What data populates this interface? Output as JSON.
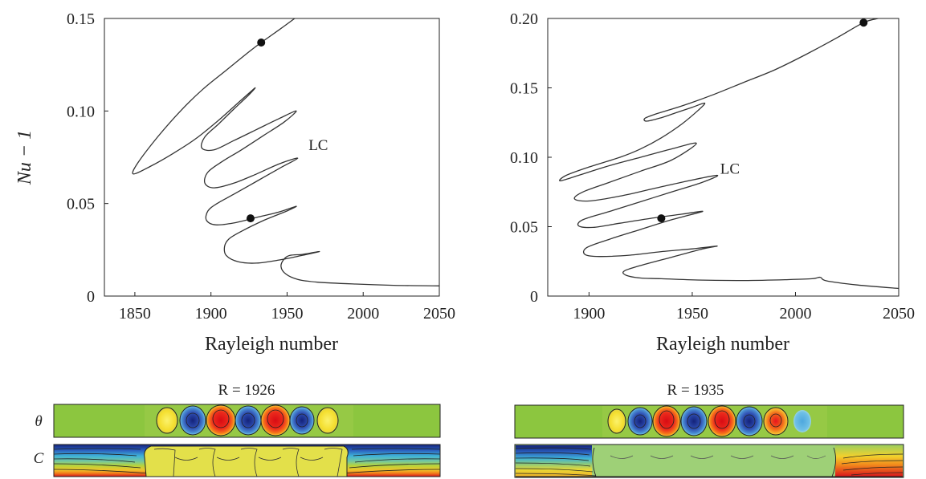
{
  "chart_data": [
    {
      "type": "line",
      "title": "",
      "xlabel": "Rayleigh number",
      "ylabel": "Nu − 1",
      "xlim": [
        1830,
        2050
      ],
      "ylim": [
        0,
        0.15
      ],
      "xticks": [
        1850,
        1900,
        1950,
        2000,
        2050
      ],
      "yticks": [
        0,
        0.05,
        0.1,
        0.15
      ],
      "xtick_labels": [
        "1850",
        "1900",
        "1950",
        "2000",
        "2050"
      ],
      "ytick_labels": [
        "0",
        "0.05",
        "0.10",
        "0.15"
      ],
      "annotations": [
        {
          "text": "LC",
          "x": 1962,
          "y": 0.078
        }
      ],
      "markers": [
        {
          "x": 1933,
          "y": 0.137
        },
        {
          "x": 1926,
          "y": 0.042
        }
      ],
      "series": [
        {
          "points": [
            [
              2050,
              0.0055
            ],
            [
              2020,
              0.0058
            ],
            [
              1995,
              0.0065
            ],
            [
              1970,
              0.0075
            ],
            [
              1957,
              0.009
            ],
            [
              1949,
              0.012
            ],
            [
              1946,
              0.016
            ],
            [
              1948,
              0.02
            ],
            [
              1952,
              0.022
            ],
            [
              1960,
              0.0225
            ],
            [
              1967,
              0.0235
            ],
            [
              1971,
              0.024
            ],
            [
              1960,
              0.022
            ],
            [
              1945,
              0.0195
            ],
            [
              1930,
              0.0178
            ],
            [
              1918,
              0.0185
            ],
            [
              1910,
              0.022
            ],
            [
              1909,
              0.027
            ],
            [
              1912,
              0.031
            ],
            [
              1920,
              0.035
            ],
            [
              1935,
              0.041
            ],
            [
              1950,
              0.046
            ],
            [
              1956,
              0.0485
            ],
            [
              1945,
              0.0455
            ],
            [
              1930,
              0.0425
            ],
            [
              1915,
              0.0395
            ],
            [
              1903,
              0.0385
            ],
            [
              1897,
              0.041
            ],
            [
              1898,
              0.046
            ],
            [
              1904,
              0.05
            ],
            [
              1915,
              0.055
            ],
            [
              1930,
              0.062
            ],
            [
              1945,
              0.069
            ],
            [
              1957,
              0.0745
            ],
            [
              1945,
              0.0715
            ],
            [
              1930,
              0.066
            ],
            [
              1915,
              0.061
            ],
            [
              1902,
              0.0585
            ],
            [
              1896,
              0.061
            ],
            [
              1898,
              0.067
            ],
            [
              1908,
              0.073
            ],
            [
              1920,
              0.079
            ],
            [
              1935,
              0.087
            ],
            [
              1948,
              0.094
            ],
            [
              1956,
              0.1
            ],
            [
              1945,
              0.096
            ],
            [
              1930,
              0.09
            ],
            [
              1915,
              0.084
            ],
            [
              1902,
              0.079
            ],
            [
              1894,
              0.08
            ],
            [
              1896,
              0.086
            ],
            [
              1905,
              0.093
            ],
            [
              1915,
              0.101
            ],
            [
              1924,
              0.108
            ],
            [
              1929,
              0.1125
            ],
            [
              1920,
              0.106
            ],
            [
              1905,
              0.095
            ],
            [
              1890,
              0.085
            ],
            [
              1875,
              0.077
            ],
            [
              1860,
              0.07
            ],
            [
              1849,
              0.066
            ],
            [
              1852,
              0.072
            ],
            [
              1865,
              0.086
            ],
            [
              1880,
              0.1
            ],
            [
              1895,
              0.112
            ],
            [
              1910,
              0.122
            ],
            [
              1925,
              0.132
            ],
            [
              1933,
              0.137
            ],
            [
              1945,
              0.144
            ],
            [
              1955,
              0.15
            ]
          ]
        }
      ]
    },
    {
      "type": "line",
      "title": "",
      "xlabel": "Rayleigh number",
      "ylabel": "",
      "xlim": [
        1880,
        2050
      ],
      "ylim": [
        0,
        0.2
      ],
      "xticks": [
        1900,
        1950,
        2000,
        2050
      ],
      "yticks": [
        0,
        0.05,
        0.1,
        0.15,
        0.2
      ],
      "xtick_labels": [
        "1900",
        "1950",
        "2000",
        "2050"
      ],
      "ytick_labels": [
        "0",
        "0.05",
        "0.10",
        "0.15",
        "0.20"
      ],
      "annotations": [
        {
          "text": "LC",
          "x": 1962,
          "y": 0.087
        }
      ],
      "markers": [
        {
          "x": 1935,
          "y": 0.056
        },
        {
          "x": 2033,
          "y": 0.197
        }
      ],
      "series": [
        {
          "points": [
            [
              2050,
              0.0055
            ],
            [
              2030,
              0.008
            ],
            [
              2015,
              0.011
            ],
            [
              2012,
              0.0135
            ],
            [
              2008,
              0.0125
            ],
            [
              1995,
              0.0118
            ],
            [
              1975,
              0.0112
            ],
            [
              1955,
              0.0115
            ],
            [
              1935,
              0.0125
            ],
            [
              1925,
              0.013
            ],
            [
              1918,
              0.015
            ],
            [
              1917,
              0.018
            ],
            [
              1925,
              0.022
            ],
            [
              1940,
              0.028
            ],
            [
              1955,
              0.034
            ],
            [
              1962,
              0.036
            ],
            [
              1950,
              0.034
            ],
            [
              1935,
              0.032
            ],
            [
              1920,
              0.0295
            ],
            [
              1905,
              0.0285
            ],
            [
              1898,
              0.03
            ],
            [
              1899,
              0.035
            ],
            [
              1910,
              0.041
            ],
            [
              1925,
              0.048
            ],
            [
              1940,
              0.055
            ],
            [
              1955,
              0.061
            ],
            [
              1945,
              0.059
            ],
            [
              1930,
              0.056
            ],
            [
              1915,
              0.0525
            ],
            [
              1902,
              0.0495
            ],
            [
              1895,
              0.0505
            ],
            [
              1897,
              0.055
            ],
            [
              1910,
              0.061
            ],
            [
              1925,
              0.068
            ],
            [
              1940,
              0.075
            ],
            [
              1955,
              0.082
            ],
            [
              1962,
              0.087
            ],
            [
              1945,
              0.082
            ],
            [
              1930,
              0.077
            ],
            [
              1915,
              0.072
            ],
            [
              1900,
              0.0685
            ],
            [
              1893,
              0.07
            ],
            [
              1897,
              0.075
            ],
            [
              1910,
              0.082
            ],
            [
              1925,
              0.09
            ],
            [
              1940,
              0.098
            ],
            [
              1952,
              0.11
            ],
            [
              1940,
              0.106
            ],
            [
              1925,
              0.1
            ],
            [
              1910,
              0.094
            ],
            [
              1895,
              0.087
            ],
            [
              1886,
              0.083
            ],
            [
              1889,
              0.087
            ],
            [
              1900,
              0.093
            ],
            [
              1915,
              0.1
            ],
            [
              1925,
              0.106
            ],
            [
              1935,
              0.114
            ],
            [
              1945,
              0.124
            ],
            [
              1953,
              0.134
            ],
            [
              1956,
              0.139
            ],
            [
              1950,
              0.136
            ],
            [
              1942,
              0.132
            ],
            [
              1935,
              0.1285
            ],
            [
              1928,
              0.126
            ],
            [
              1927,
              0.128
            ],
            [
              1932,
              0.131
            ],
            [
              1945,
              0.137
            ],
            [
              1960,
              0.145
            ],
            [
              1975,
              0.154
            ],
            [
              1990,
              0.163
            ],
            [
              2005,
              0.174
            ],
            [
              2020,
              0.186
            ],
            [
              2033,
              0.197
            ],
            [
              2040,
              0.2
            ]
          ]
        }
      ]
    }
  ],
  "fields": [
    {
      "title": "R = 1926",
      "row1_label": "θ",
      "row2_label": "C"
    },
    {
      "title": "R = 1935",
      "row1_label": "θ",
      "row2_label": "C"
    }
  ],
  "colors": {
    "curve": "#333333",
    "marker": "#111111",
    "axis": "#222222",
    "field_green": "#8cc63f",
    "field_yellow": "#f4e94a",
    "field_red": "#e8141e",
    "field_blue": "#2f4fb3",
    "field_cyan": "#65b6e5",
    "field_navy": "#0f2a7a"
  }
}
